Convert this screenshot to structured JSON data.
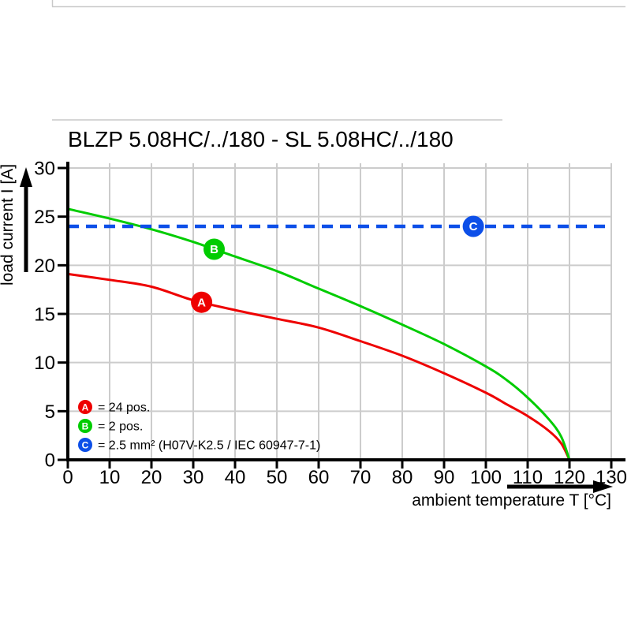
{
  "chart_data": {
    "type": "line",
    "title": "BLZP 5.08HC/../180 - SL 5.08HC/../180",
    "xlabel": "ambient temperature T [°C]",
    "ylabel": "load current I [A]",
    "xlim": [
      0,
      130
    ],
    "ylim": [
      0,
      30
    ],
    "xticks": [
      0,
      10,
      20,
      30,
      40,
      50,
      60,
      70,
      80,
      90,
      100,
      110,
      120,
      130
    ],
    "yticks": [
      0,
      5,
      10,
      15,
      20,
      25,
      30
    ],
    "grid": true,
    "legend_position": "inside-bottom-left",
    "colors": {
      "red": "#ee0000",
      "green": "#00cc00",
      "blue": "#0d4fe8",
      "grid": "#cccccc",
      "axis": "#000000",
      "frame": "#c9c9c9"
    },
    "series": [
      {
        "id": "A",
        "label": "24 pos.",
        "color_key": "red",
        "dashed": false,
        "points": [
          [
            0,
            19.1
          ],
          [
            10,
            18.5
          ],
          [
            20,
            17.8
          ],
          [
            30,
            16.4
          ],
          [
            40,
            15.4
          ],
          [
            50,
            14.5
          ],
          [
            60,
            13.6
          ],
          [
            70,
            12.2
          ],
          [
            80,
            10.7
          ],
          [
            90,
            8.9
          ],
          [
            100,
            6.9
          ],
          [
            105,
            5.7
          ],
          [
            110,
            4.5
          ],
          [
            115,
            3.0
          ],
          [
            118,
            1.7
          ],
          [
            120,
            0
          ]
        ]
      },
      {
        "id": "B",
        "label": "2 pos.",
        "color_key": "green",
        "dashed": false,
        "points": [
          [
            0,
            25.8
          ],
          [
            10,
            24.8
          ],
          [
            20,
            23.7
          ],
          [
            30,
            22.4
          ],
          [
            40,
            20.9
          ],
          [
            50,
            19.4
          ],
          [
            60,
            17.6
          ],
          [
            70,
            15.8
          ],
          [
            80,
            13.9
          ],
          [
            90,
            11.9
          ],
          [
            100,
            9.6
          ],
          [
            105,
            8.2
          ],
          [
            110,
            6.4
          ],
          [
            115,
            4.2
          ],
          [
            118,
            2.4
          ],
          [
            120,
            0
          ]
        ]
      },
      {
        "id": "C",
        "label": "2.5 mm² (H07V-K2.5 / IEC 60947-7-1)",
        "color_key": "blue",
        "dashed": true,
        "points": [
          [
            0,
            24
          ],
          [
            130,
            24
          ]
        ]
      }
    ],
    "markers": [
      {
        "badge": "A",
        "series": "A",
        "x": 32
      },
      {
        "badge": "B",
        "series": "B",
        "x": 35
      },
      {
        "badge": "C",
        "series": "C",
        "x": 97
      }
    ],
    "legend": [
      {
        "badge": "A",
        "color_key": "red",
        "label": "= 24 pos."
      },
      {
        "badge": "B",
        "color_key": "green",
        "label": "= 2 pos."
      },
      {
        "badge": "C",
        "color_key": "blue",
        "label": "= 2.5 mm² (H07V-K2.5 / IEC 60947-7-1)"
      }
    ]
  }
}
